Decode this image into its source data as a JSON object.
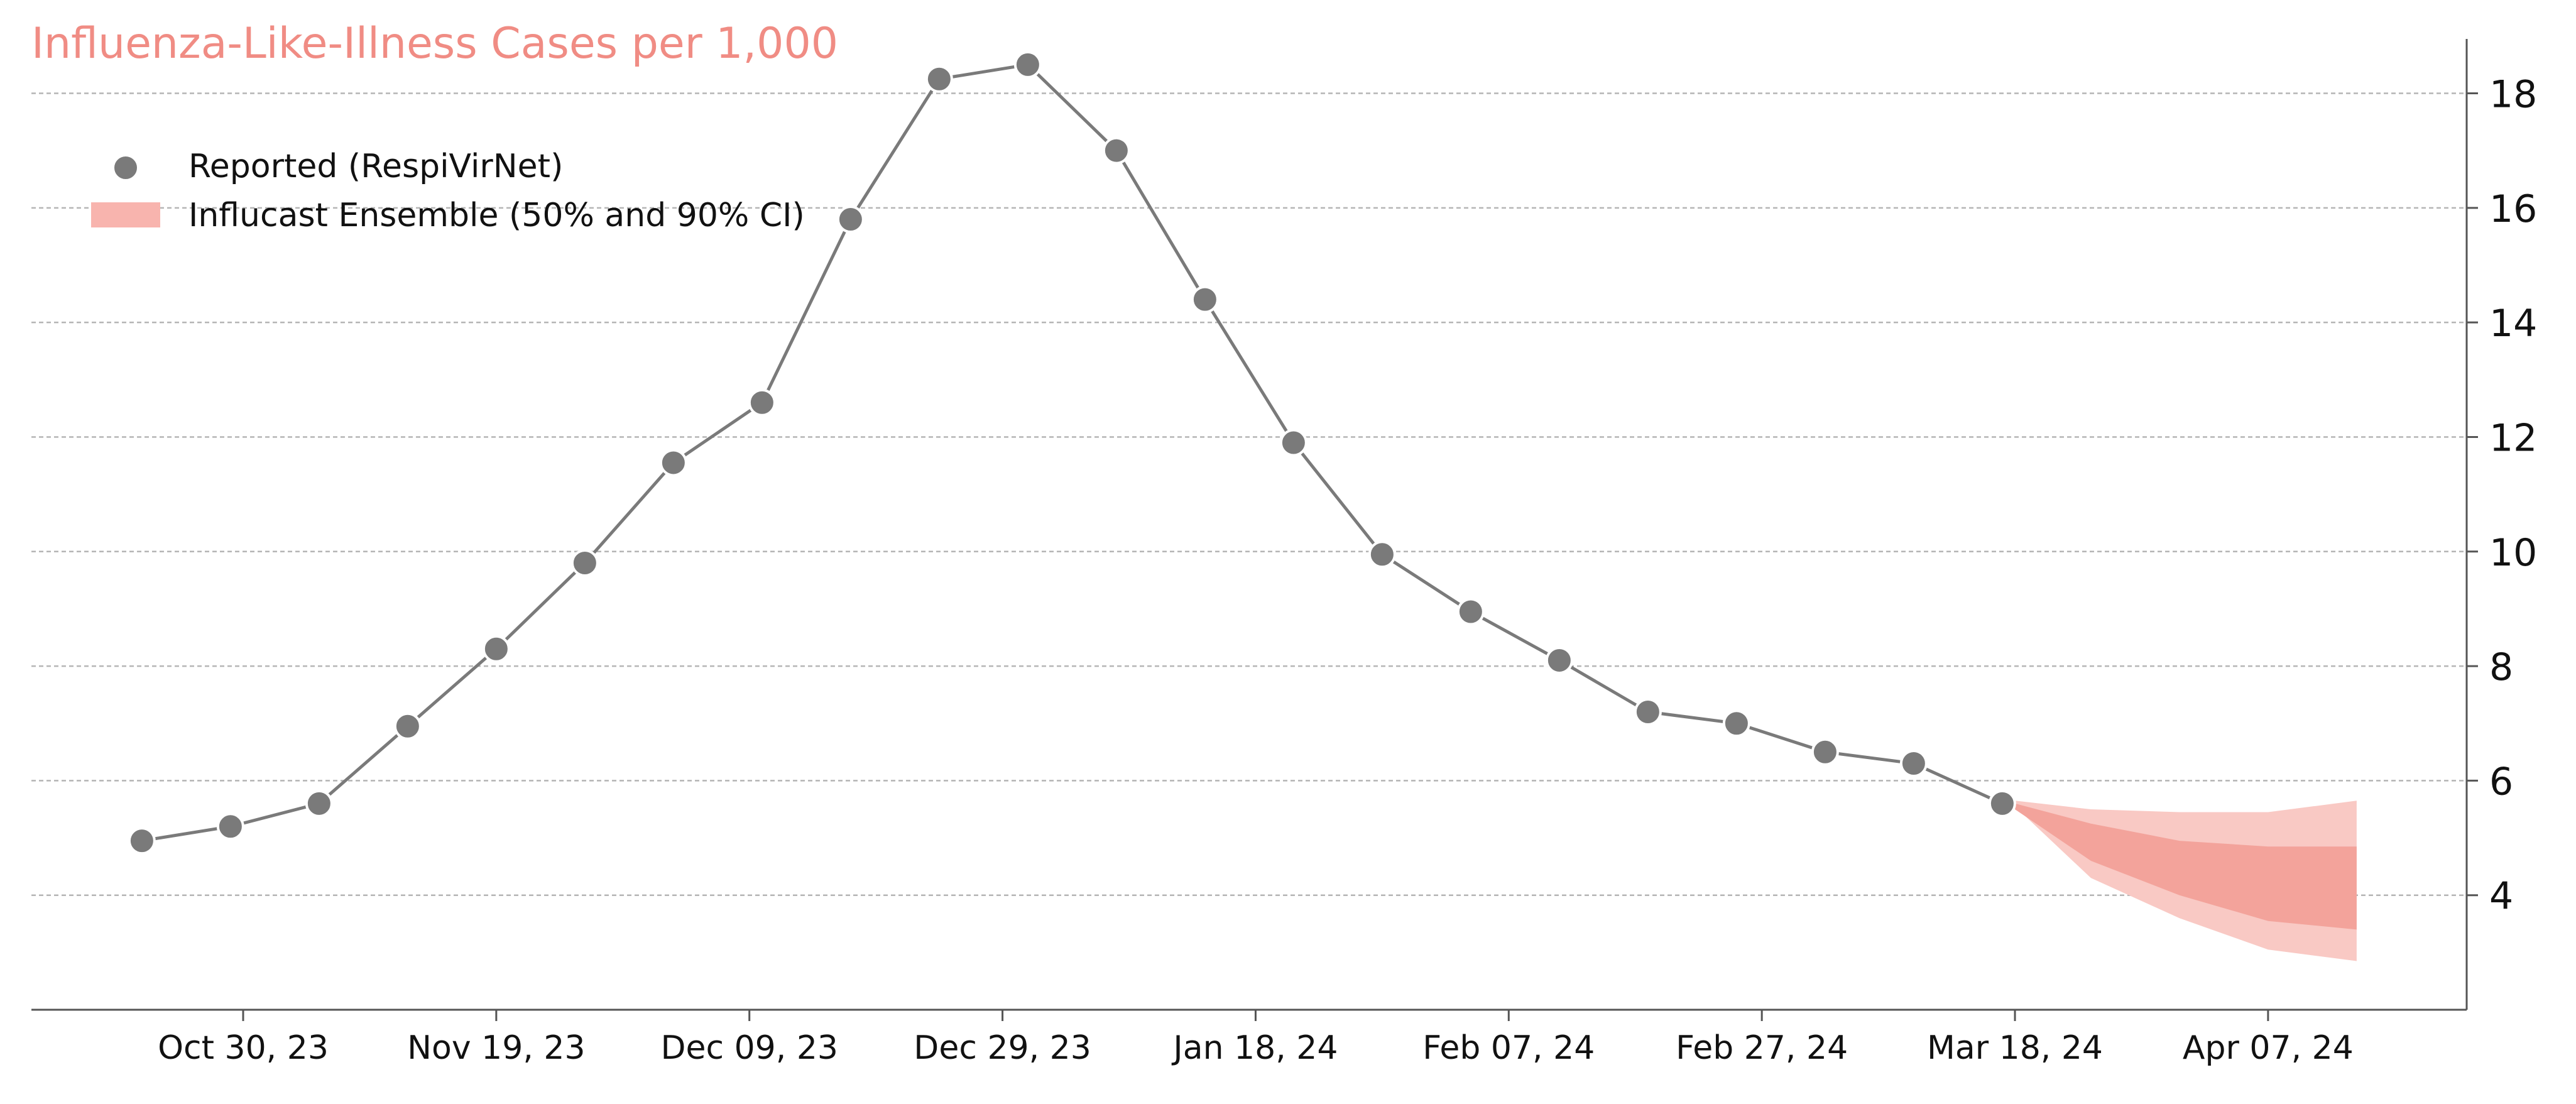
{
  "chart_data": {
    "type": "line",
    "title": "Influenza-Like-Illness Cases per 1,000",
    "xlabel": "",
    "ylabel": "",
    "ylim": [
      2,
      19.3
    ],
    "x_ticks": [
      "Oct 30, 23",
      "Nov 19, 23",
      "Dec 09, 23",
      "Dec 29, 23",
      "Jan 18, 24",
      "Feb 07, 24",
      "Feb 27, 24",
      "Mar 18, 24",
      "Apr 07, 24"
    ],
    "y_ticks": [
      4,
      6,
      8,
      10,
      12,
      14,
      16,
      18
    ],
    "grid": "horizontal dashed",
    "y_axis_position": "right",
    "legend_position": "top-left",
    "series": [
      {
        "name": "Reported (RespiVirNet)",
        "kind": "line-with-markers",
        "color": "#7a7a7a",
        "x": [
          "2023-10-22",
          "2023-10-29",
          "2023-11-05",
          "2023-11-12",
          "2023-11-19",
          "2023-11-26",
          "2023-12-03",
          "2023-12-10",
          "2023-12-17",
          "2023-12-24",
          "2023-12-31",
          "2024-01-07",
          "2024-01-14",
          "2024-01-21",
          "2024-01-28",
          "2024-02-04",
          "2024-02-11",
          "2024-02-18",
          "2024-02-25",
          "2024-03-03",
          "2024-03-10",
          "2024-03-17"
        ],
        "y": [
          4.95,
          5.2,
          5.6,
          6.95,
          8.3,
          9.8,
          11.55,
          12.6,
          15.8,
          18.25,
          18.5,
          17.0,
          14.4,
          11.9,
          9.95,
          8.95,
          8.1,
          7.2,
          7.0,
          6.5,
          6.3,
          5.6
        ]
      },
      {
        "name": "Influcast Ensemble (50% and 90% CI)",
        "kind": "band",
        "color": "#f8b4ae",
        "x": [
          "2024-03-18",
          "2024-03-24",
          "2024-03-31",
          "2024-04-07",
          "2024-04-14"
        ],
        "ci90_lower": [
          5.55,
          4.3,
          3.6,
          3.05,
          2.85
        ],
        "ci90_upper": [
          5.65,
          5.5,
          5.45,
          5.45,
          5.65
        ],
        "ci50_lower": [
          5.5,
          4.6,
          4.0,
          3.55,
          3.4
        ],
        "ci50_upper": [
          5.6,
          5.25,
          4.95,
          4.85,
          4.85
        ]
      }
    ]
  },
  "colors": {
    "reported": "#7a7a7a",
    "band_90": "#f9c9c4",
    "band_50": "#f3a39b",
    "title": "#f08c84",
    "grid": "#b5b5b5",
    "axis": "#555555"
  }
}
